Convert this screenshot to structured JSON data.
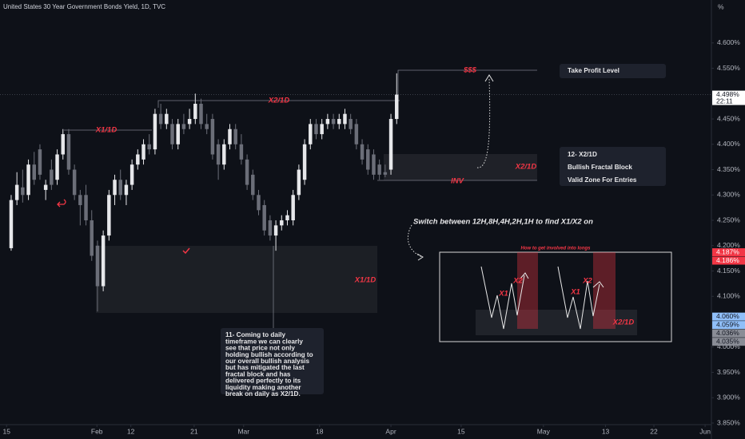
{
  "chart_data": {
    "type": "candlestick",
    "title": "United States 30 Year Government Bonds Yield, 1D, TVC",
    "unit": "%",
    "x": [
      0,
      1,
      2,
      3,
      4,
      5,
      6,
      7,
      8,
      9,
      10,
      11,
      12,
      13,
      14,
      15,
      16,
      17,
      18,
      19,
      20,
      21,
      22,
      23,
      24,
      25,
      26,
      27,
      28,
      29,
      30,
      31,
      32,
      33,
      34,
      35,
      36,
      37,
      38,
      39,
      40,
      41,
      42,
      43,
      44,
      45,
      46,
      47,
      48,
      49,
      50,
      51,
      52,
      53,
      54,
      55,
      56,
      57,
      58,
      59,
      60,
      61,
      62,
      63,
      64,
      65,
      66,
      67
    ],
    "open": [
      4.195,
      4.29,
      4.315,
      4.3,
      4.36,
      4.39,
      4.31,
      4.35,
      4.33,
      4.38,
      4.42,
      4.35,
      4.3,
      4.3,
      4.25,
      4.2,
      4.12,
      4.22,
      4.3,
      4.33,
      4.3,
      4.32,
      4.36,
      4.37,
      4.4,
      4.39,
      4.46,
      4.44,
      4.44,
      4.4,
      4.44,
      4.44,
      4.45,
      4.48,
      4.44,
      4.45,
      4.4,
      4.36,
      4.4,
      4.43,
      4.4,
      4.37,
      4.34,
      4.3,
      4.28,
      4.25,
      4.22,
      4.24,
      4.25,
      4.25,
      4.3,
      4.33,
      4.4,
      4.44,
      4.42,
      4.44,
      4.45,
      4.44,
      4.44,
      4.45,
      4.44,
      4.4,
      4.39,
      4.38,
      4.36,
      4.345,
      4.35,
      4.45
    ],
    "high": [
      4.3,
      4.345,
      4.35,
      4.37,
      4.385,
      4.4,
      4.33,
      4.37,
      4.39,
      4.43,
      4.43,
      4.36,
      4.31,
      4.32,
      4.27,
      4.21,
      4.23,
      4.31,
      4.34,
      4.35,
      4.33,
      4.37,
      4.39,
      4.41,
      4.42,
      4.47,
      4.48,
      4.47,
      4.45,
      4.45,
      4.46,
      4.47,
      4.5,
      4.49,
      4.46,
      4.46,
      4.41,
      4.41,
      4.44,
      4.44,
      4.42,
      4.38,
      4.35,
      4.31,
      4.29,
      4.26,
      4.25,
      4.26,
      4.27,
      4.31,
      4.36,
      4.41,
      4.45,
      4.45,
      4.45,
      4.46,
      4.46,
      4.46,
      4.47,
      4.46,
      4.45,
      4.41,
      4.4,
      4.39,
      4.37,
      4.36,
      4.46,
      4.54
    ],
    "low": [
      4.19,
      4.28,
      4.285,
      4.29,
      4.32,
      4.33,
      4.29,
      4.31,
      4.32,
      4.37,
      4.34,
      4.29,
      4.24,
      4.24,
      4.17,
      4.07,
      4.11,
      4.21,
      4.28,
      4.29,
      4.28,
      4.31,
      4.35,
      4.36,
      4.38,
      4.38,
      4.43,
      4.43,
      4.39,
      4.39,
      4.42,
      4.43,
      4.44,
      4.43,
      4.42,
      4.37,
      4.33,
      4.35,
      4.39,
      4.39,
      4.36,
      4.31,
      4.29,
      4.26,
      4.22,
      4.21,
      4.19,
      4.23,
      4.24,
      4.24,
      4.29,
      4.32,
      4.39,
      4.41,
      4.41,
      4.43,
      4.43,
      4.43,
      4.43,
      4.42,
      4.39,
      4.36,
      4.34,
      4.33,
      4.33,
      4.335,
      4.34,
      4.44
    ],
    "close": [
      4.29,
      4.32,
      4.3,
      4.36,
      4.33,
      4.34,
      4.32,
      4.32,
      4.38,
      4.42,
      4.35,
      4.3,
      4.28,
      4.25,
      4.18,
      4.12,
      4.22,
      4.3,
      4.33,
      4.3,
      4.32,
      4.36,
      4.38,
      4.4,
      4.39,
      4.46,
      4.44,
      4.46,
      4.4,
      4.44,
      4.43,
      4.45,
      4.48,
      4.44,
      4.43,
      4.38,
      4.36,
      4.4,
      4.43,
      4.4,
      4.37,
      4.32,
      4.3,
      4.27,
      4.23,
      4.22,
      4.24,
      4.25,
      4.26,
      4.3,
      4.35,
      4.4,
      4.44,
      4.42,
      4.44,
      4.45,
      4.44,
      4.45,
      4.46,
      4.43,
      4.4,
      4.37,
      4.35,
      4.34,
      4.34,
      4.34,
      4.45,
      4.498
    ],
    "up_color": "#e6e7ea",
    "down_color": "#6b6e78",
    "xlim": [
      -1.94,
      121.7
    ],
    "xticks": [
      {
        "value": -0.8,
        "label": "15"
      },
      {
        "value": 14.9,
        "label": "Feb"
      },
      {
        "value": 20.8,
        "label": "12"
      },
      {
        "value": 31.8,
        "label": "21"
      },
      {
        "value": 40.4,
        "label": "Mar"
      },
      {
        "value": 53.6,
        "label": "18"
      },
      {
        "value": 66,
        "label": "Apr"
      },
      {
        "value": 78.2,
        "label": "15"
      },
      {
        "value": 92.5,
        "label": "May"
      },
      {
        "value": 103.3,
        "label": "13"
      },
      {
        "value": 111.7,
        "label": "22"
      },
      {
        "value": 120.6,
        "label": "Jun"
      }
    ],
    "ylim": [
      3.85,
      4.68
    ],
    "yticks": [
      {
        "value": 3.85,
        "label": "3.850%"
      },
      {
        "value": 3.9,
        "label": "3.900%"
      },
      {
        "value": 3.95,
        "label": "3.950%"
      },
      {
        "value": 4.0,
        "label": "4.000%"
      },
      {
        "value": 4.1,
        "label": "4.100%"
      },
      {
        "value": 4.15,
        "label": "4.150%"
      },
      {
        "value": 4.2,
        "label": "4.200%"
      },
      {
        "value": 4.25,
        "label": "4.250%"
      },
      {
        "value": 4.3,
        "label": "4.300%"
      },
      {
        "value": 4.35,
        "label": "4.350%"
      },
      {
        "value": 4.4,
        "label": "4.400%"
      },
      {
        "value": 4.45,
        "label": "4.450%"
      },
      {
        "value": 4.55,
        "label": "4.550%"
      },
      {
        "value": 4.6,
        "label": "4.600%"
      }
    ],
    "grid": false,
    "price_labels": [
      {
        "value": 4.498,
        "label": "4.498%",
        "color": "#ffffff",
        "text_color": "#131722"
      },
      {
        "value": 4.187,
        "label": "4.187%",
        "color": "#f23645",
        "text_color": "#ffffff"
      },
      {
        "value": 4.186,
        "label": "4.186%",
        "color": "#f23645",
        "text_color": "#ffffff"
      },
      {
        "value": 4.06,
        "label": "4.060%",
        "color": "#90bff9",
        "text_color": "#131722"
      },
      {
        "value": 4.059,
        "label": "4.059%",
        "color": "#90bff9",
        "text_color": "#131722"
      },
      {
        "value": 4.036,
        "label": "4.036%",
        "color": "#8a8d96",
        "text_color": "#131722"
      },
      {
        "value": 4.035,
        "label": "4.035%",
        "color": "#8a8d96",
        "text_color": "#131722"
      }
    ],
    "countdown": "22:11",
    "annotations": {
      "x1_label": "X1/1D",
      "x2_label": "X2/1D",
      "tp_marker": "$$$",
      "inv": "INV",
      "zone_x2": "X2/1D",
      "zone_x1": "X1/1D",
      "take_profit": "Take Profit Level",
      "note12": [
        "12- X2/1D",
        "Bullish Fractal Block",
        "Valid Zone For Entries"
      ],
      "switch": "Switch between 12H,8H,4H,2H,1H to find X1/X2 on",
      "note11": [
        "11- Coming to daily",
        "timeframe we can clearly",
        "see that price not only",
        "holding bullish according to",
        "our overall bullish analysis",
        "but has mitigated the last",
        "fractal block and has",
        "delivered perfectly to its",
        "liquidity making another",
        "break on daily as X2/1D."
      ]
    }
  },
  "inset": {
    "title": "How to get involved into longs",
    "labels": [
      "X1",
      "X2",
      "X1",
      "X2",
      "X2/1D"
    ]
  }
}
